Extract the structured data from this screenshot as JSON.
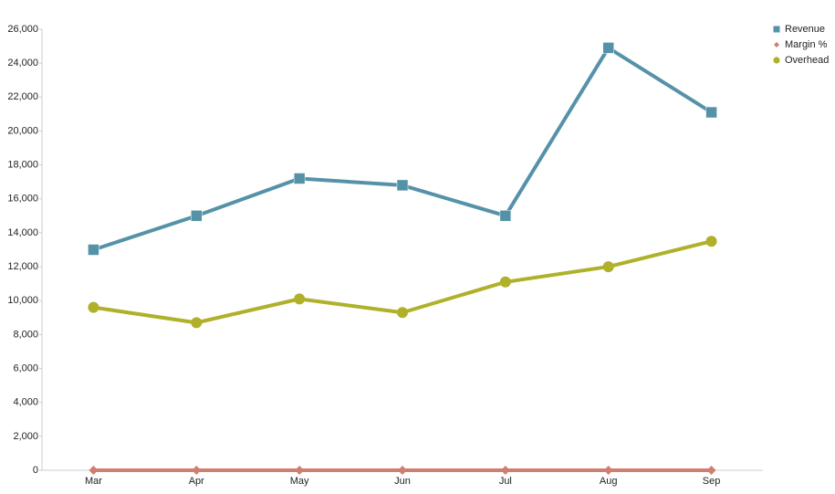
{
  "chart_data": {
    "type": "line",
    "categories": [
      "Mar",
      "Apr",
      "May",
      "Jun",
      "Jul",
      "Aug",
      "Sep"
    ],
    "series": [
      {
        "name": "Revenue",
        "color": "#5592a8",
        "marker": "square",
        "values": [
          13000,
          15000,
          17200,
          16800,
          15000,
          24900,
          21100
        ]
      },
      {
        "name": "Margin %",
        "color": "#cf7f6f",
        "marker": "diamond",
        "values": [
          0,
          0,
          0,
          0,
          0,
          0,
          0
        ]
      },
      {
        "name": "Overhead",
        "color": "#b0b02a",
        "marker": "circle",
        "values": [
          9600,
          8700,
          10100,
          9300,
          11100,
          12000,
          13500
        ]
      }
    ],
    "ylim": [
      0,
      26000
    ],
    "yticks": [
      0,
      {
        "value": 2000,
        "label": "2,000"
      },
      {
        "value": 4000,
        "label": "4,000"
      },
      {
        "value": 6000,
        "label": "6,000"
      },
      {
        "value": 8000,
        "label": "8,000"
      },
      {
        "value": 10000,
        "label": "10,000"
      },
      {
        "value": 12000,
        "label": "12,000"
      },
      {
        "value": 14000,
        "label": "14,000"
      },
      {
        "value": 16000,
        "label": "16,000"
      },
      {
        "value": 18000,
        "label": "18,000"
      },
      {
        "value": 20000,
        "label": "20,000"
      },
      {
        "value": 22000,
        "label": "22,000"
      },
      {
        "value": 24000,
        "label": "24,000"
      },
      {
        "value": 26000,
        "label": "26,000"
      }
    ],
    "grid": false,
    "legend": "top-right"
  }
}
